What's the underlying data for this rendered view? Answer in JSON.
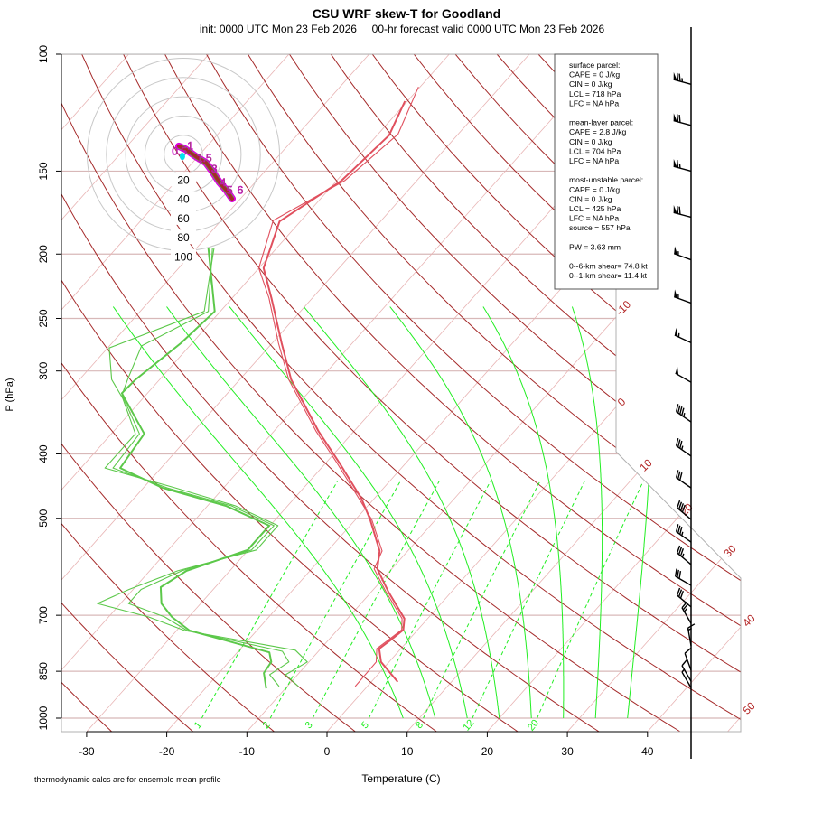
{
  "chart_data": {
    "type": "line",
    "subtype": "skew-T log-p",
    "title": "CSU WRF skew-T for Goodland",
    "subtitle": "init: 0000 UTC Mon 23 Feb 2026     00-hr forecast valid 0000 UTC Mon 23 Feb 2026",
    "xlabel": "Temperature (C)",
    "ylabel": "P (hPa)",
    "footnote": "thermodynamic calcs are for ensemble mean profile",
    "xlim": [
      -33,
      45
    ],
    "ylim": [
      1000,
      100
    ],
    "x_ticks": [
      "-30",
      "-20",
      "-10",
      "0",
      "10",
      "20",
      "30",
      "40"
    ],
    "x_tick_values": [
      -30,
      -20,
      -10,
      0,
      10,
      20,
      30,
      40
    ],
    "y_ticks": [
      "100",
      "150",
      "200",
      "250",
      "300",
      "400",
      "500",
      "700",
      "850",
      "1000"
    ],
    "y_tick_values": [
      100,
      150,
      200,
      250,
      300,
      400,
      500,
      700,
      850,
      1000
    ],
    "isotherm_labels": [
      "-10",
      "0",
      "10",
      "20",
      "30",
      "40",
      "50"
    ],
    "isotherm_label_values": [
      -10,
      0,
      10,
      20,
      30,
      40,
      50
    ],
    "mixing_ratio_labels": [
      "1",
      "2",
      "3",
      "5",
      "8",
      "12",
      "20"
    ],
    "mixing_ratio_values": [
      1,
      2,
      3,
      5,
      8,
      12,
      20
    ],
    "moist_adiabat_thetaw": [
      8,
      12,
      16,
      20,
      24,
      28,
      32,
      36
    ],
    "colors": {
      "temperature": "#e0505e",
      "dewpoint": "#5cc84a",
      "dry_adiabat": "#a52a2a",
      "isotherm": "#e8b4b4",
      "moist_adiabat": "#22ee22",
      "mixing_ratio": "#22ee22",
      "isobar": "#d8b8b8",
      "hodo_ring": "#c8c8c8",
      "hodo_line": "#a52a2a",
      "storm_motion": "#00e5ee",
      "hodo_label": "#cc00cc"
    },
    "series": [
      {
        "name": "temperature mean",
        "values": [
          [
            117.7,
            -60.3
          ],
          [
            132.5,
            -58.5
          ],
          [
            155,
            -59.4
          ],
          [
            178.6,
            -62.6
          ],
          [
            210,
            -59.4
          ],
          [
            233,
            -55.1
          ],
          [
            272.5,
            -48.8
          ],
          [
            309,
            -43.6
          ],
          [
            329,
            -40.4
          ],
          [
            370,
            -34.4
          ],
          [
            412,
            -28.4
          ],
          [
            467,
            -21.6
          ],
          [
            502,
            -18.2
          ],
          [
            560,
            -13.5
          ],
          [
            596,
            -11.8
          ],
          [
            645,
            -7.9
          ],
          [
            708,
            -2.9
          ],
          [
            736,
            -1.8
          ],
          [
            761,
            -2.2
          ],
          [
            786,
            -2.7
          ],
          [
            823,
            -1.0
          ],
          [
            882,
            3.3
          ]
        ]
      },
      {
        "name": "temperature member",
        "values": [
          [
            112,
            -60.2
          ],
          [
            132,
            -57.5
          ],
          [
            155,
            -59.0
          ],
          [
            178,
            -63.5
          ],
          [
            210,
            -60.0
          ],
          [
            233,
            -55.4
          ],
          [
            272.5,
            -49.2
          ],
          [
            309,
            -43.9
          ],
          [
            329,
            -40.7
          ],
          [
            370,
            -34.7
          ],
          [
            412,
            -28.7
          ],
          [
            467,
            -21.9
          ],
          [
            502,
            -18.0
          ],
          [
            560,
            -13.2
          ],
          [
            596,
            -12.2
          ],
          [
            645,
            -8.2
          ],
          [
            708,
            -3.2
          ],
          [
            736,
            -2.0
          ],
          [
            761,
            -2.5
          ],
          [
            786,
            -3.0
          ],
          [
            823,
            -1.6
          ],
          [
            896,
            -1.5
          ]
        ]
      },
      {
        "name": "dewpoint mean",
        "values": [
          [
            196,
            -68.5
          ],
          [
            244,
            -60.7
          ],
          [
            272.5,
            -61.4
          ],
          [
            309,
            -63.0
          ],
          [
            324,
            -63.2
          ],
          [
            373,
            -55.9
          ],
          [
            420,
            -55.1
          ],
          [
            450,
            -47.6
          ],
          [
            479,
            -37.7
          ],
          [
            513,
            -30.1
          ],
          [
            558,
            -30.1
          ],
          [
            600,
            -35.4
          ],
          [
            635,
            -36.8
          ],
          [
            672,
            -34.9
          ],
          [
            704,
            -32.1
          ],
          [
            738,
            -28.4
          ],
          [
            796,
            -16.0
          ],
          [
            823,
            -14.7
          ],
          [
            855,
            -14.4
          ],
          [
            902,
            -12.4
          ]
        ]
      },
      {
        "name": "dewpoint member 1",
        "values": [
          [
            196,
            -67.8
          ],
          [
            244,
            -62.0
          ],
          [
            277,
            -69.8
          ],
          [
            309,
            -66.0
          ],
          [
            330,
            -62.5
          ],
          [
            373,
            -57.0
          ],
          [
            420,
            -57.0
          ],
          [
            450,
            -46.0
          ],
          [
            479,
            -36.5
          ],
          [
            513,
            -29.0
          ],
          [
            558,
            -29.0
          ],
          [
            600,
            -36.5
          ],
          [
            640,
            -40.5
          ],
          [
            672,
            -42.9
          ],
          [
            704,
            -35.0
          ],
          [
            738,
            -29.0
          ],
          [
            790,
            -13.0
          ],
          [
            823,
            -10.2
          ],
          [
            860,
            -11.5
          ],
          [
            896,
            -8.6
          ]
        ]
      },
      {
        "name": "dewpoint member 2",
        "values": [
          [
            196,
            -68.0
          ],
          [
            244,
            -61.5
          ],
          [
            275,
            -66.0
          ],
          [
            309,
            -64.0
          ],
          [
            326,
            -63.0
          ],
          [
            373,
            -56.5
          ],
          [
            420,
            -56.0
          ],
          [
            450,
            -47.0
          ],
          [
            479,
            -37.0
          ],
          [
            513,
            -29.5
          ],
          [
            558,
            -29.6
          ],
          [
            600,
            -36.0
          ],
          [
            640,
            -39.0
          ],
          [
            672,
            -39.0
          ],
          [
            704,
            -33.0
          ],
          [
            738,
            -28.7
          ],
          [
            793,
            -14.5
          ],
          [
            823,
            -12.5
          ],
          [
            860,
            -13.5
          ],
          [
            896,
            -11.0
          ]
        ]
      }
    ],
    "winds": {
      "units": "kt",
      "levels": [
        [
          111,
          285,
          75
        ],
        [
          128,
          285,
          70
        ],
        [
          150,
          285,
          65
        ],
        [
          176,
          285,
          70
        ],
        [
          204,
          290,
          55
        ],
        [
          237,
          290,
          55
        ],
        [
          272,
          295,
          55
        ],
        [
          312,
          300,
          50
        ],
        [
          358,
          305,
          45
        ],
        [
          403,
          305,
          35
        ],
        [
          450,
          305,
          30
        ],
        [
          502,
          310,
          40
        ],
        [
          543,
          305,
          35
        ],
        [
          587,
          310,
          35
        ],
        [
          631,
          300,
          30
        ],
        [
          680,
          310,
          30
        ],
        [
          720,
          330,
          25
        ],
        [
          778,
          350,
          15
        ],
        [
          847,
          340,
          10
        ],
        [
          880,
          330,
          10
        ],
        [
          900,
          330,
          5
        ]
      ]
    },
    "hodograph": {
      "ring_labels": [
        "20",
        "40",
        "60",
        "80",
        "100"
      ],
      "ring_values": [
        20,
        40,
        60,
        80,
        100
      ],
      "points_uv_kt": [
        [
          -4.7,
          8.5
        ],
        [
          2,
          5.6
        ],
        [
          14,
          -2.8
        ],
        [
          23.5,
          -8.5
        ],
        [
          29,
          -16
        ],
        [
          37.6,
          -29
        ],
        [
          45,
          -37.6
        ],
        [
          50.7,
          -46
        ]
      ],
      "height_labels": [
        [
          "0.5",
          -12,
          4
        ],
        [
          "1",
          4,
          10
        ],
        [
          "1.5",
          14,
          -2.8
        ],
        [
          "3",
          29,
          -14
        ],
        [
          "4",
          38,
          -28
        ],
        [
          "5",
          45,
          -36
        ],
        [
          "6",
          56,
          -36
        ]
      ],
      "storm_motion_uv_kt": [
        -1,
        -2
      ]
    },
    "parcel_info": {
      "lines": [
        "surface parcel:",
        "CAPE = 0 J/kg",
        "CIN = 0 J/kg",
        "LCL = 718 hPa",
        "LFC = NA hPa",
        "",
        "mean-layer parcel:",
        "CAPE = 2.8 J/kg",
        "CIN = 0 J/kg",
        "LCL = 704 hPa",
        "LFC = NA hPa",
        "",
        "most-unstable parcel:",
        "CAPE = 0 J/kg",
        "CIN = 0 J/kg",
        "LCL = 425 hPa",
        "LFC = NA hPa",
        "source = 557 hPa",
        "",
        "PW =  3.63 mm",
        "",
        "0--6-km shear= 74.8 kt",
        "0--1-km shear= 11.4 kt"
      ]
    }
  }
}
